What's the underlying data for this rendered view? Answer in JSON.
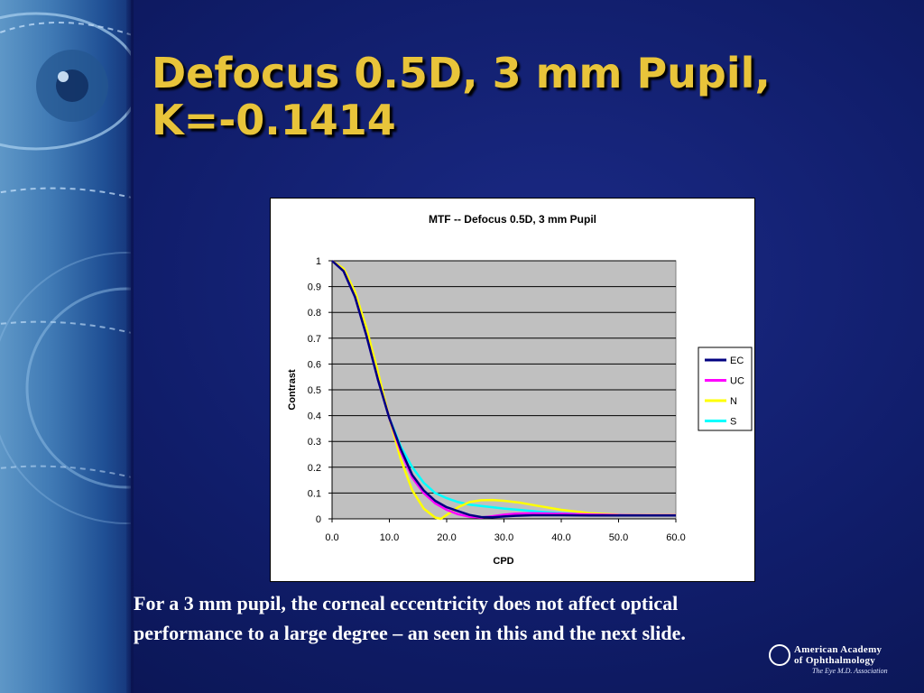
{
  "slide": {
    "title_line1": "Defocus 0.5D, 3 mm Pupil,",
    "title_line2": "K=-0.1414",
    "caption_line1": "For a 3 mm pupil, the corneal eccentricity does not affect optical",
    "caption_line2": "performance to a large degree – an seen in this and the next slide."
  },
  "logo": {
    "line1": "American Academy",
    "line2": "of Ophthalmology",
    "tagline": "The Eye M.D. Association"
  },
  "colors": {
    "title": "#e8c43a",
    "plot_area": "#c0c0c0",
    "EC": "#000080",
    "UC": "#ff00ff",
    "N": "#ffff00",
    "S": "#00ffff"
  },
  "chart_data": {
    "type": "line",
    "title": "MTF -- Defocus 0.5D, 3 mm Pupil",
    "xlabel": "CPD",
    "ylabel": "Contrast",
    "xlim": [
      0,
      60
    ],
    "ylim": [
      0,
      1
    ],
    "x_ticks": [
      "0.0",
      "10.0",
      "20.0",
      "30.0",
      "40.0",
      "50.0",
      "60.0"
    ],
    "y_ticks": [
      "0",
      "0.1",
      "0.2",
      "0.3",
      "0.4",
      "0.5",
      "0.6",
      "0.7",
      "0.8",
      "0.9",
      "1"
    ],
    "grid": true,
    "legend": "right",
    "series": [
      {
        "name": "EC",
        "color": "#000080",
        "points": [
          [
            0,
            1.0
          ],
          [
            2,
            0.96
          ],
          [
            4,
            0.86
          ],
          [
            6,
            0.71
          ],
          [
            8,
            0.54
          ],
          [
            10,
            0.39
          ],
          [
            12,
            0.27
          ],
          [
            14,
            0.17
          ],
          [
            16,
            0.11
          ],
          [
            18,
            0.07
          ],
          [
            20,
            0.045
          ],
          [
            22,
            0.03
          ],
          [
            24,
            0.015
          ],
          [
            26,
            0.007
          ],
          [
            28,
            0.006
          ],
          [
            30,
            0.009
          ],
          [
            32,
            0.012
          ],
          [
            35,
            0.014
          ],
          [
            40,
            0.014
          ],
          [
            45,
            0.013
          ],
          [
            50,
            0.013
          ],
          [
            55,
            0.013
          ],
          [
            60,
            0.013
          ]
        ]
      },
      {
        "name": "UC",
        "color": "#ff00ff",
        "points": [
          [
            0,
            1.0
          ],
          [
            2,
            0.96
          ],
          [
            4,
            0.86
          ],
          [
            6,
            0.71
          ],
          [
            8,
            0.54
          ],
          [
            10,
            0.39
          ],
          [
            12,
            0.26
          ],
          [
            14,
            0.16
          ],
          [
            16,
            0.1
          ],
          [
            18,
            0.06
          ],
          [
            20,
            0.035
          ],
          [
            22,
            0.018
          ],
          [
            24,
            0.008
          ],
          [
            26,
            0.005
          ],
          [
            28,
            0.01
          ],
          [
            30,
            0.016
          ],
          [
            32,
            0.02
          ],
          [
            35,
            0.022
          ],
          [
            40,
            0.02
          ],
          [
            45,
            0.017
          ],
          [
            50,
            0.015
          ],
          [
            55,
            0.014
          ],
          [
            60,
            0.014
          ]
        ]
      },
      {
        "name": "N",
        "color": "#ffff00",
        "points": [
          [
            0,
            1.0
          ],
          [
            2,
            0.97
          ],
          [
            4,
            0.88
          ],
          [
            6,
            0.74
          ],
          [
            8,
            0.57
          ],
          [
            10,
            0.39
          ],
          [
            12,
            0.23
          ],
          [
            14,
            0.11
          ],
          [
            16,
            0.04
          ],
          [
            18,
            0.005
          ],
          [
            19,
            0.0
          ],
          [
            20,
            0.015
          ],
          [
            22,
            0.045
          ],
          [
            24,
            0.065
          ],
          [
            26,
            0.072
          ],
          [
            28,
            0.073
          ],
          [
            30,
            0.07
          ],
          [
            33,
            0.062
          ],
          [
            36,
            0.05
          ],
          [
            40,
            0.035
          ],
          [
            45,
            0.022
          ],
          [
            50,
            0.016
          ],
          [
            55,
            0.015
          ],
          [
            60,
            0.015
          ]
        ]
      },
      {
        "name": "S",
        "color": "#00ffff",
        "points": [
          [
            0,
            1.0
          ],
          [
            2,
            0.96
          ],
          [
            4,
            0.86
          ],
          [
            6,
            0.71
          ],
          [
            8,
            0.54
          ],
          [
            10,
            0.39
          ],
          [
            12,
            0.28
          ],
          [
            14,
            0.2
          ],
          [
            16,
            0.14
          ],
          [
            18,
            0.1
          ],
          [
            20,
            0.08
          ],
          [
            22,
            0.065
          ],
          [
            24,
            0.055
          ],
          [
            26,
            0.05
          ],
          [
            28,
            0.045
          ],
          [
            30,
            0.04
          ],
          [
            33,
            0.034
          ],
          [
            36,
            0.028
          ],
          [
            40,
            0.022
          ],
          [
            45,
            0.018
          ],
          [
            50,
            0.016
          ],
          [
            55,
            0.015
          ],
          [
            60,
            0.015
          ]
        ]
      }
    ]
  }
}
